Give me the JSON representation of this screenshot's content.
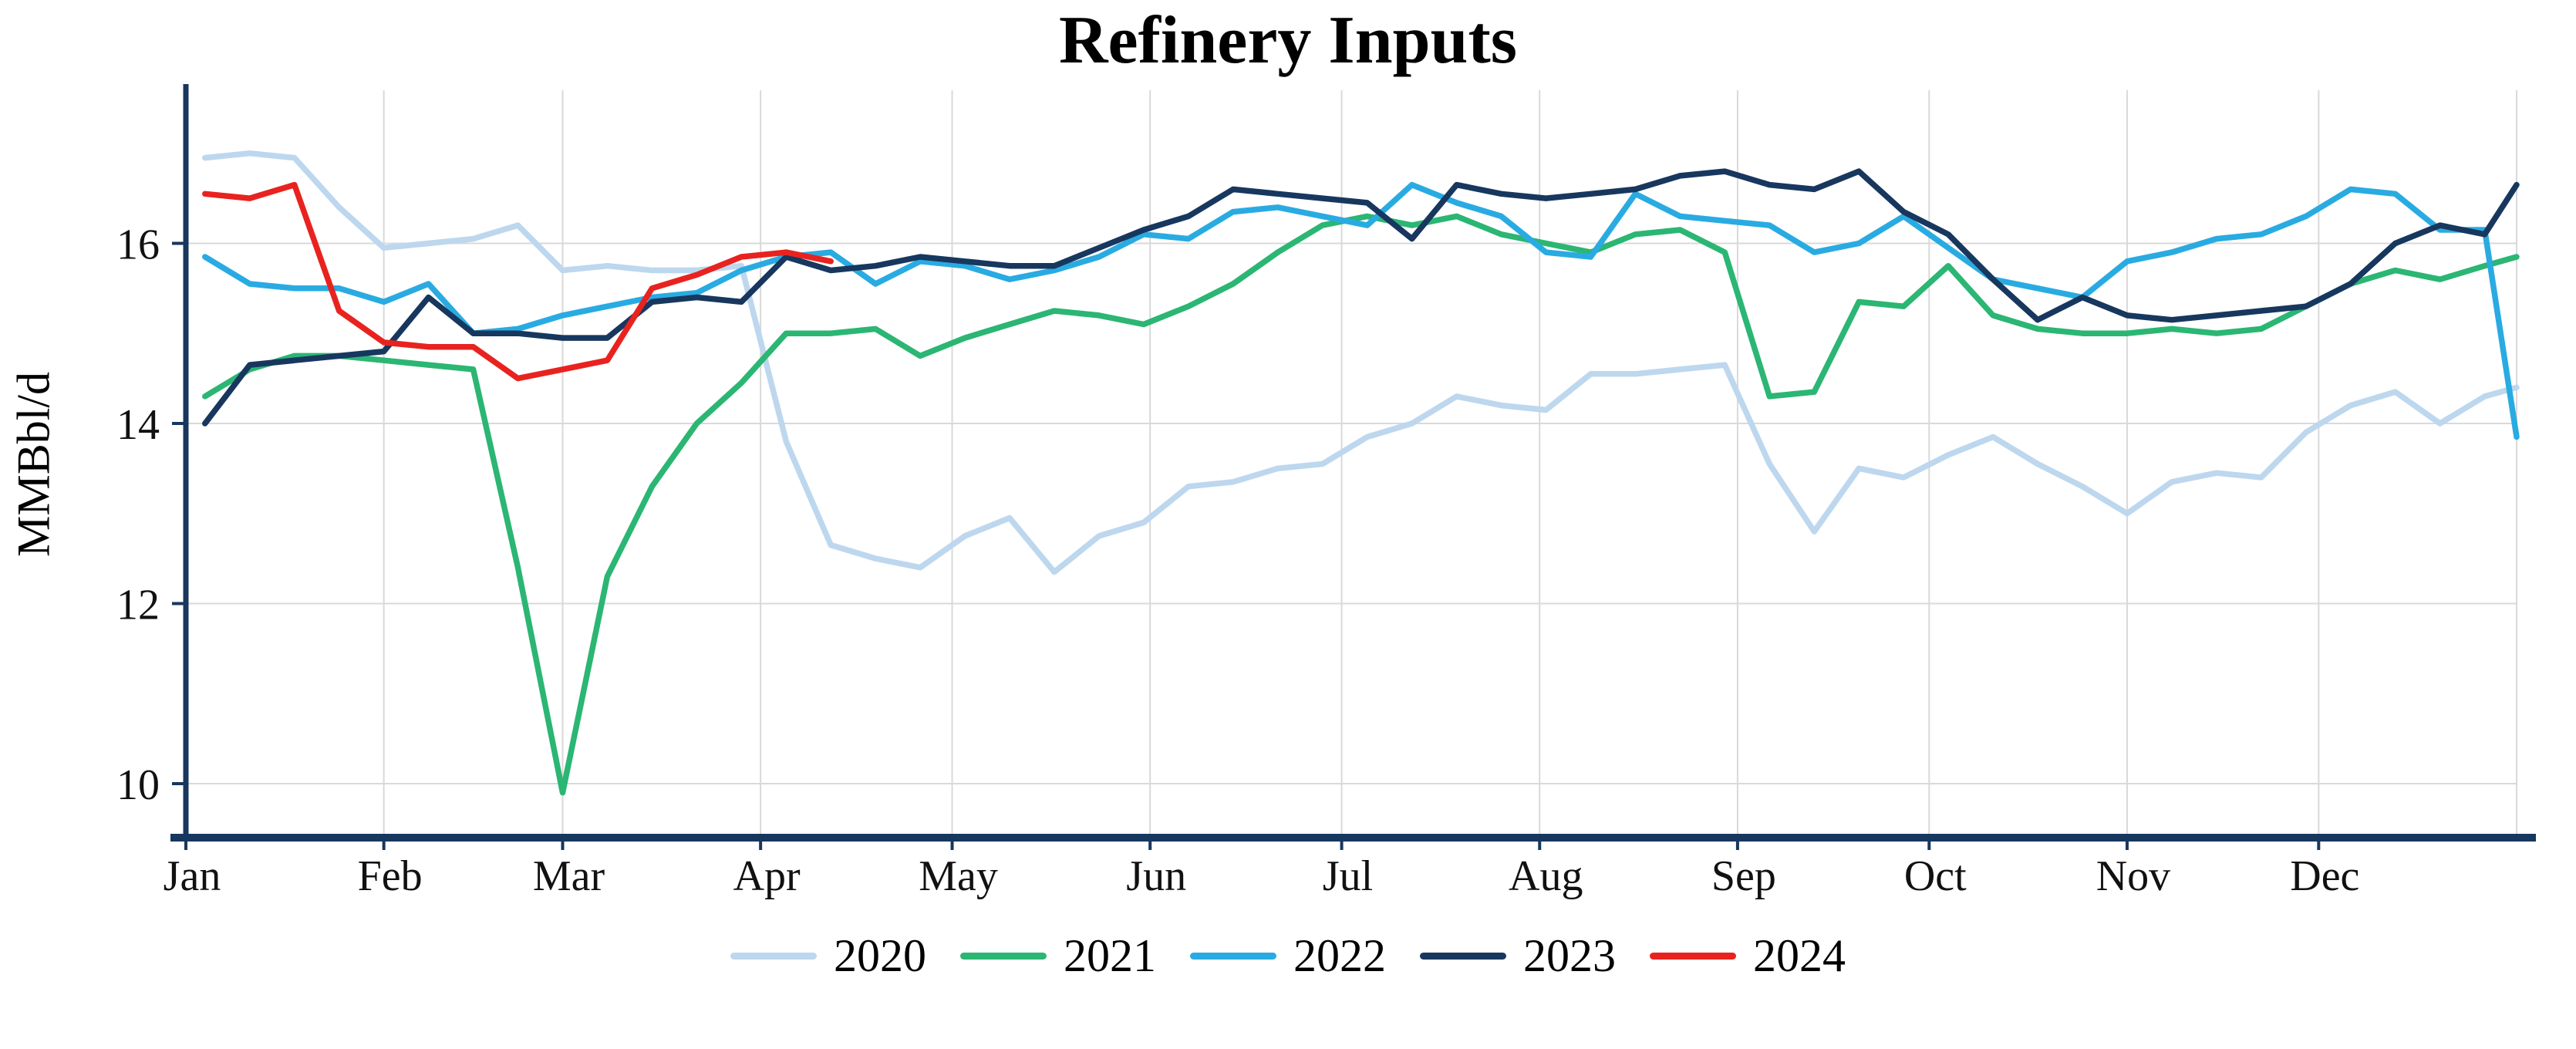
{
  "chart_data": {
    "type": "line",
    "title": "Refinery Inputs",
    "xlabel": "",
    "ylabel": "MMBbl/d",
    "x_unit": "week",
    "x_months": [
      "Jan",
      "Feb",
      "Mar",
      "Apr",
      "May",
      "Jun",
      "Jul",
      "Aug",
      "Sep",
      "Oct",
      "Nov",
      "Dec"
    ],
    "yticks": [
      10,
      12,
      14,
      16
    ],
    "ylim": [
      9.4,
      17.7
    ],
    "grid": true,
    "legend_position": "bottom",
    "axis_color": "#17375e",
    "grid_color": "#d9d9d9",
    "series": [
      {
        "name": "2020",
        "color": "#bdd7ee",
        "values": [
          16.95,
          17.0,
          16.95,
          16.4,
          15.95,
          16.0,
          16.05,
          16.2,
          15.7,
          15.75,
          15.7,
          15.7,
          15.75,
          13.8,
          12.65,
          12.5,
          12.4,
          12.75,
          12.95,
          12.35,
          12.75,
          12.9,
          13.3,
          13.35,
          13.5,
          13.55,
          13.85,
          14.0,
          14.3,
          14.2,
          14.15,
          14.55,
          14.55,
          14.6,
          14.65,
          13.55,
          12.8,
          13.5,
          13.4,
          13.65,
          13.85,
          13.55,
          13.3,
          13.0,
          13.35,
          13.45,
          13.4,
          13.9,
          14.2,
          14.35,
          14.0,
          14.3,
          14.4
        ]
      },
      {
        "name": "2021",
        "color": "#2bb673",
        "values": [
          14.3,
          14.6,
          14.75,
          14.75,
          14.7,
          14.65,
          14.6,
          12.4,
          9.9,
          12.3,
          13.3,
          14.0,
          14.45,
          15.0,
          15.0,
          15.05,
          14.75,
          14.95,
          15.1,
          15.25,
          15.2,
          15.1,
          15.3,
          15.55,
          15.9,
          16.2,
          16.3,
          16.2,
          16.3,
          16.1,
          16.0,
          15.9,
          16.1,
          16.15,
          15.9,
          14.3,
          14.35,
          15.35,
          15.3,
          15.75,
          15.2,
          15.05,
          15.0,
          15.0,
          15.05,
          15.0,
          15.05,
          15.3,
          15.55,
          15.7,
          15.6,
          15.75,
          15.85
        ]
      },
      {
        "name": "2022",
        "color": "#29abe2",
        "values": [
          15.85,
          15.55,
          15.5,
          15.5,
          15.35,
          15.55,
          15.0,
          15.05,
          15.2,
          15.3,
          15.4,
          15.45,
          15.7,
          15.85,
          15.9,
          15.55,
          15.8,
          15.75,
          15.6,
          15.7,
          15.85,
          16.1,
          16.05,
          16.35,
          16.4,
          16.3,
          16.2,
          16.65,
          16.45,
          16.3,
          15.9,
          15.85,
          16.55,
          16.3,
          16.25,
          16.2,
          15.9,
          16.0,
          16.3,
          15.95,
          15.6,
          15.5,
          15.4,
          15.8,
          15.9,
          16.05,
          16.1,
          16.3,
          16.6,
          16.55,
          16.15,
          16.15,
          13.85
        ]
      },
      {
        "name": "2023",
        "color": "#17375e",
        "values": [
          14.0,
          14.65,
          14.7,
          14.75,
          14.8,
          15.4,
          15.0,
          15.0,
          14.95,
          14.95,
          15.35,
          15.4,
          15.35,
          15.85,
          15.7,
          15.75,
          15.85,
          15.8,
          15.75,
          15.75,
          15.95,
          16.15,
          16.3,
          16.6,
          16.55,
          16.5,
          16.45,
          16.05,
          16.65,
          16.55,
          16.5,
          16.55,
          16.6,
          16.75,
          16.8,
          16.65,
          16.6,
          16.8,
          16.35,
          16.1,
          15.6,
          15.15,
          15.4,
          15.2,
          15.15,
          15.2,
          15.25,
          15.3,
          15.55,
          16.0,
          16.2,
          16.1,
          16.65
        ]
      },
      {
        "name": "2024",
        "color": "#e8231f",
        "values": [
          16.55,
          16.5,
          16.65,
          15.25,
          14.9,
          14.85,
          14.85,
          14.5,
          14.6,
          14.7,
          15.5,
          15.65,
          15.85,
          15.9,
          15.8
        ]
      }
    ]
  }
}
